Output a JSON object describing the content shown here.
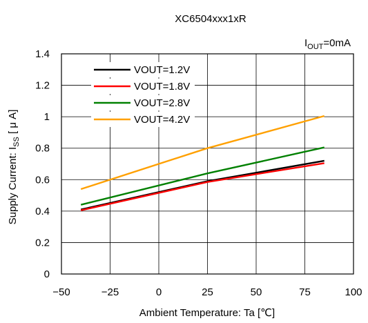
{
  "chart_data": {
    "type": "line",
    "title": "XC6504xxx1xR",
    "condition": {
      "prefix": "I",
      "subscript": "OUT",
      "suffix": "=0mA"
    },
    "xlabel": "Ambient Temperature: Ta [℃]",
    "ylabel": {
      "prefix": "Supply Current: I",
      "subscript": "SS",
      "suffix": " [ μ A]"
    },
    "xlim": [
      -50,
      100
    ],
    "ylim": [
      0,
      1.4
    ],
    "xticks": [
      -50,
      -25,
      0,
      25,
      50,
      75,
      100
    ],
    "xtick_labels": [
      "−50",
      "−25",
      "0",
      "25",
      "50",
      "75",
      "100"
    ],
    "yticks": [
      0,
      0.2,
      0.4,
      0.6,
      0.8,
      1,
      1.2,
      1.4
    ],
    "ytick_labels": [
      "0",
      "0.2",
      "0.4",
      "0.6",
      "0.8",
      "1",
      "1.2",
      "1.4"
    ],
    "grid": true,
    "legend_position": "top-left",
    "series": [
      {
        "name": "VOUT=1.2V",
        "color": "#000000",
        "x": [
          -40,
          25,
          85
        ],
        "y": [
          0.41,
          0.59,
          0.72
        ]
      },
      {
        "name": "VOUT=1.8V",
        "color": "#ff0000",
        "x": [
          -40,
          25,
          85
        ],
        "y": [
          0.405,
          0.585,
          0.705
        ]
      },
      {
        "name": "VOUT=2.8V",
        "color": "#008000",
        "x": [
          -40,
          25,
          85
        ],
        "y": [
          0.44,
          0.64,
          0.805
        ]
      },
      {
        "name": "VOUT=4.2V",
        "color": "#ffa000",
        "x": [
          -40,
          25,
          85
        ],
        "y": [
          0.54,
          0.8,
          1.005
        ]
      }
    ]
  }
}
